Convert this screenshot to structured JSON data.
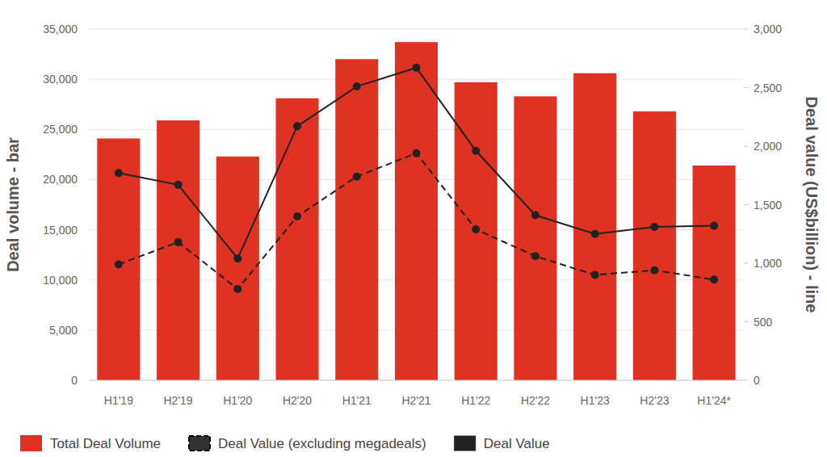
{
  "chart_data": {
    "type": "bar",
    "categories": [
      "H1'19",
      "H2'19",
      "H1'20",
      "H2'20",
      "H1'21",
      "H2'21",
      "H1'22",
      "H2'22",
      "H1'23",
      "H2'23",
      "H1'24*"
    ],
    "series": [
      {
        "name": "Total Deal Volume",
        "type": "bar",
        "color": "#df3222",
        "values": [
          24100,
          25900,
          22300,
          28100,
          32000,
          33700,
          29700,
          28300,
          30600,
          26800,
          21400
        ]
      },
      {
        "name": "Deal Value (excluding megadeals)",
        "type": "line",
        "axis": "y2",
        "color": "#222222",
        "line_style": "dashed",
        "marker": "circle",
        "values": [
          990,
          1180,
          780,
          1400,
          1740,
          1940,
          1290,
          1060,
          900,
          940,
          860
        ]
      },
      {
        "name": "Deal Value",
        "type": "line",
        "axis": "y2",
        "color": "#222222",
        "line_style": "solid",
        "marker": "circle",
        "values": [
          1770,
          1670,
          1040,
          2170,
          2510,
          2670,
          1960,
          1410,
          1250,
          1310,
          1320
        ]
      }
    ],
    "y_label": "Deal volume - bar",
    "y2_label": "Deal value (US$billion) - line",
    "ylim": [
      0,
      35000
    ],
    "yticks": [
      0,
      {
        "value": 5000,
        "label": "5,000"
      },
      {
        "value": 10000,
        "label": "10,000"
      },
      {
        "value": 15000,
        "label": "15,000"
      },
      {
        "value": 20000,
        "label": "20,000"
      },
      {
        "value": 25000,
        "label": "25,000"
      },
      {
        "value": 30000,
        "label": "30,000"
      },
      {
        "value": 35000,
        "label": "35,000"
      }
    ],
    "y2lim": [
      0,
      3000
    ],
    "y2ticks": [
      0,
      500,
      {
        "value": 1000,
        "label": "1,000"
      },
      {
        "value": 1500,
        "label": "1,500"
      },
      {
        "value": 2000,
        "label": "2,000"
      },
      {
        "value": 2500,
        "label": "2,500"
      },
      {
        "value": 3000,
        "label": "3,000"
      }
    ],
    "grid": true,
    "legend": "bottom"
  }
}
